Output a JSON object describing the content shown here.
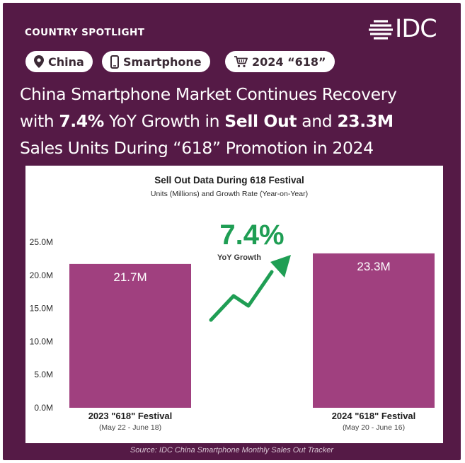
{
  "header": {
    "kicker": "COUNTRY SPOTLIGHT",
    "logo_text": "IDC"
  },
  "tags": [
    {
      "label": "China",
      "icon": "location-pin-icon"
    },
    {
      "label": "Smartphone",
      "icon": "smartphone-icon"
    },
    {
      "label": "2024 “618”",
      "icon": "shopping-cart-icon"
    }
  ],
  "headline": {
    "line1": "China Smartphone Market Continues Recovery",
    "line2_pre": "with ",
    "line2_pct": "7.4%",
    "line2_mid": " YoY Growth in ",
    "line2_sell": "Sell Out",
    "line2_and": " and ",
    "line2_units": "23.3M",
    "line3": "Sales Units During “618” Promotion in 2024"
  },
  "chart_data": {
    "type": "bar",
    "title": "Sell Out Data During 618 Festival",
    "subtitle": "Units (Millions) and Growth Rate (Year-on-Year)",
    "categories": [
      "2023 \"618\" Festival",
      "2024 \"618\" Festival"
    ],
    "category_dates": [
      "(May 22 - June 18)",
      "(May 20 - June 16)"
    ],
    "values": [
      21.7,
      23.3
    ],
    "value_labels": [
      "21.7M",
      "23.3M"
    ],
    "ylim": [
      0,
      25
    ],
    "yticks": [
      "25.0M",
      "20.0M",
      "15.0M",
      "10.0M",
      "5.0M",
      "0.0M"
    ],
    "annotation_value": "7.4%",
    "annotation_label": "YoY Growth",
    "xlabel": "",
    "ylabel": "",
    "colors": {
      "bar": "#a0407f",
      "growth": "#1f9e54",
      "text": "#2a2a2a"
    }
  },
  "source": "Source: IDC China Smartphone Monthly Sales Out Tracker"
}
